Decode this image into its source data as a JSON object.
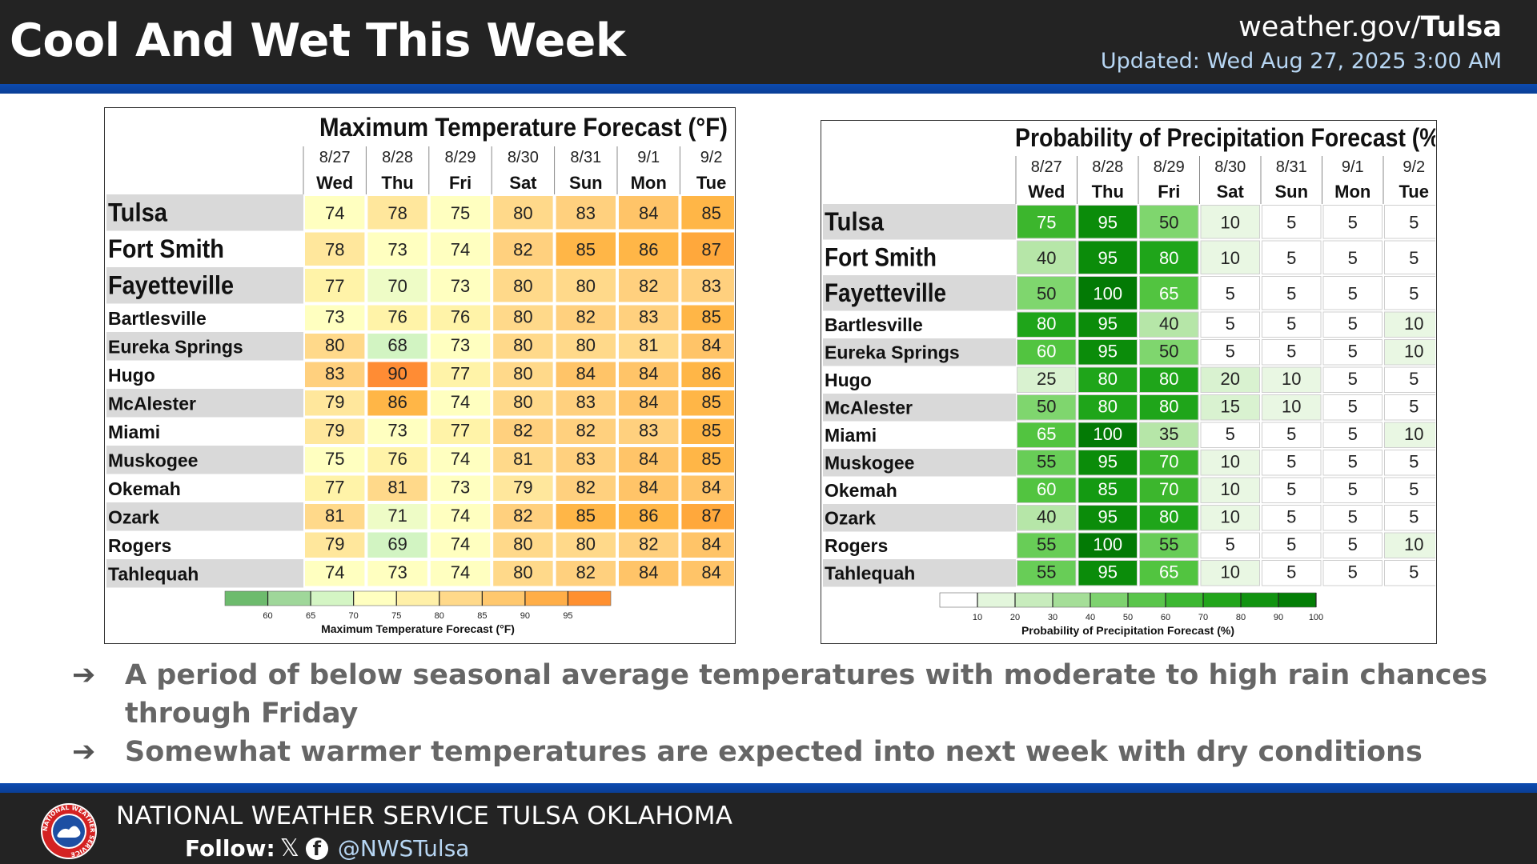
{
  "header": {
    "title": "Cool And Wet This Week",
    "site_prefix": "weather.gov/",
    "site_office": "Tulsa",
    "updated": "Updated: Wed Aug 27, 2025 3:00 AM"
  },
  "colors": {
    "header_bg": "#232323",
    "accent_blue": "#0c4bb0",
    "updated_text": "#b7d6f3"
  },
  "chart_data": [
    {
      "type": "heatmap",
      "title": "Maximum Temperature Forecast (°F)",
      "dates": [
        "8/27",
        "8/28",
        "8/29",
        "8/30",
        "8/31",
        "9/1",
        "9/2"
      ],
      "days": [
        "Wed",
        "Thu",
        "Fri",
        "Sat",
        "Sun",
        "Mon",
        "Tue"
      ],
      "rows": [
        "Tulsa",
        "Fort Smith",
        "Fayetteville",
        "Bartlesville",
        "Eureka Springs",
        "Hugo",
        "McAlester",
        "Miami",
        "Muskogee",
        "Okemah",
        "Ozark",
        "Rogers",
        "Tahlequah"
      ],
      "values": [
        [
          74,
          78,
          75,
          80,
          83,
          84,
          85
        ],
        [
          78,
          73,
          74,
          82,
          85,
          86,
          87
        ],
        [
          77,
          70,
          73,
          80,
          80,
          82,
          83
        ],
        [
          73,
          76,
          76,
          80,
          82,
          83,
          85
        ],
        [
          80,
          68,
          73,
          80,
          80,
          81,
          84
        ],
        [
          83,
          90,
          77,
          80,
          84,
          84,
          86
        ],
        [
          79,
          86,
          74,
          80,
          83,
          84,
          85
        ],
        [
          79,
          73,
          77,
          82,
          82,
          83,
          85
        ],
        [
          75,
          76,
          74,
          81,
          83,
          84,
          85
        ],
        [
          77,
          81,
          73,
          79,
          82,
          84,
          84
        ],
        [
          81,
          71,
          74,
          82,
          85,
          86,
          87
        ],
        [
          79,
          69,
          74,
          80,
          80,
          82,
          84
        ],
        [
          74,
          73,
          74,
          80,
          82,
          84,
          84
        ]
      ],
      "colorbar": {
        "ticks": [
          "60",
          "65",
          "70",
          "75",
          "80",
          "85",
          "90",
          "95"
        ],
        "label": "Maximum Temperature Forecast (°F)",
        "colors": [
          "#6dbb6d",
          "#9fd79a",
          "#d4f5c4",
          "#ffffc0",
          "#fff0a8",
          "#ffd98a",
          "#ffc86e",
          "#ffae48",
          "#ff9030"
        ]
      }
    },
    {
      "type": "heatmap",
      "title": "Probability of Precipitation Forecast (%)",
      "dates": [
        "8/27",
        "8/28",
        "8/29",
        "8/30",
        "8/31",
        "9/1",
        "9/2"
      ],
      "days": [
        "Wed",
        "Thu",
        "Fri",
        "Sat",
        "Sun",
        "Mon",
        "Tue"
      ],
      "rows": [
        "Tulsa",
        "Fort Smith",
        "Fayetteville",
        "Bartlesville",
        "Eureka Springs",
        "Hugo",
        "McAlester",
        "Miami",
        "Muskogee",
        "Okemah",
        "Ozark",
        "Rogers",
        "Tahlequah"
      ],
      "values": [
        [
          75,
          95,
          50,
          10,
          5,
          5,
          5
        ],
        [
          40,
          95,
          80,
          10,
          5,
          5,
          5
        ],
        [
          50,
          100,
          65,
          5,
          5,
          5,
          5
        ],
        [
          80,
          95,
          40,
          5,
          5,
          5,
          10
        ],
        [
          60,
          95,
          50,
          5,
          5,
          5,
          10
        ],
        [
          25,
          80,
          80,
          20,
          10,
          5,
          5
        ],
        [
          50,
          80,
          80,
          15,
          10,
          5,
          5
        ],
        [
          65,
          100,
          35,
          5,
          5,
          5,
          10
        ],
        [
          55,
          95,
          70,
          10,
          5,
          5,
          5
        ],
        [
          60,
          85,
          70,
          10,
          5,
          5,
          5
        ],
        [
          40,
          95,
          80,
          10,
          5,
          5,
          5
        ],
        [
          55,
          100,
          55,
          5,
          5,
          5,
          10
        ],
        [
          55,
          95,
          65,
          10,
          5,
          5,
          5
        ]
      ],
      "colorbar": {
        "ticks": [
          "10",
          "20",
          "30",
          "40",
          "50",
          "60",
          "70",
          "80",
          "90",
          "100"
        ],
        "label": "Probability of Precipitation Forecast (%)",
        "colors": [
          "#ffffff",
          "#e3f6dc",
          "#c8ecbd",
          "#a5de98",
          "#7ed26f",
          "#5ac54b",
          "#3cb731",
          "#22a51b",
          "#119310",
          "#047e06"
        ]
      }
    }
  ],
  "bullets": [
    "A period of below seasonal average temperatures with moderate to high rain chances through Friday",
    "Somewhat warmer temperatures are expected into next week with dry conditions"
  ],
  "bullet_arrow": "➔",
  "footer": {
    "agency": "NATIONAL WEATHER SERVICE TULSA OKLAHOMA",
    "follow_label": "Follow:",
    "x_icon": "𝕏",
    "facebook_icon": "f",
    "handle": "@NWSTulsa",
    "logo_text": "NATIONAL WEATHER SERVICE"
  }
}
